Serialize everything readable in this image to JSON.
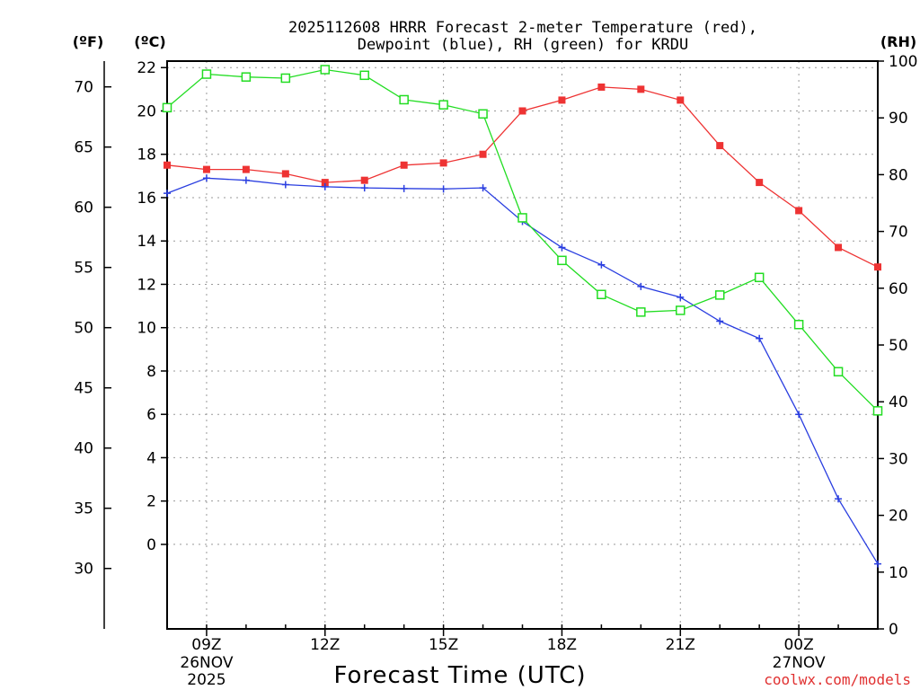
{
  "chart_data": {
    "type": "line",
    "title_line1": "2025112608 HRRR Forecast 2-meter Temperature (red),",
    "title_line2": "Dewpoint (blue), RH (green) for KRDU",
    "xlabel": "Forecast Time (UTC)",
    "watermark": "coolwx.com/models",
    "unit_labels": {
      "fahrenheit": "(ºF)",
      "celsius": "(ºC)",
      "rh": "(RH)"
    },
    "x_hours_utc": [
      8,
      9,
      10,
      11,
      12,
      13,
      14,
      15,
      16,
      17,
      18,
      19,
      20,
      21,
      22,
      23,
      24,
      25,
      26
    ],
    "xlim": [
      8,
      26
    ],
    "x_ticks": [
      {
        "hour": 9,
        "label": "09Z"
      },
      {
        "hour": 12,
        "label": "12Z"
      },
      {
        "hour": 15,
        "label": "15Z"
      },
      {
        "hour": 18,
        "label": "18Z"
      },
      {
        "hour": 21,
        "label": "21Z"
      },
      {
        "hour": 24,
        "label": "00Z"
      }
    ],
    "date_labels": [
      {
        "hour": 9,
        "line1": "26NOV",
        "line2": "2025"
      },
      {
        "hour": 24,
        "line1": "27NOV",
        "line2": ""
      }
    ],
    "celsius_axis": {
      "ylim": [
        -3.9,
        22.3
      ],
      "ticks": [
        0,
        2,
        4,
        6,
        8,
        10,
        12,
        14,
        16,
        18,
        20,
        22
      ]
    },
    "fahrenheit_axis": {
      "ticks": [
        30,
        35,
        40,
        45,
        50,
        55,
        60,
        65,
        70
      ]
    },
    "rh_axis": {
      "ylim": [
        0,
        100
      ],
      "ticks": [
        0,
        10,
        20,
        30,
        40,
        50,
        60,
        70,
        80,
        90,
        100
      ]
    },
    "series": [
      {
        "name": "Temperature",
        "axis": "celsius",
        "color": "#ee3333",
        "marker": "filled-square",
        "values": [
          17.5,
          17.3,
          17.3,
          17.1,
          16.7,
          16.8,
          17.5,
          17.6,
          18.0,
          20.0,
          20.5,
          21.1,
          21.0,
          20.5,
          18.4,
          16.7,
          15.4,
          13.7,
          12.8
        ]
      },
      {
        "name": "Dewpoint",
        "axis": "celsius",
        "color": "#2a3ee0",
        "marker": "plus",
        "values": [
          16.2,
          16.9,
          16.8,
          16.6,
          16.5,
          16.45,
          16.42,
          16.4,
          16.45,
          14.9,
          13.7,
          12.9,
          11.9,
          11.4,
          10.3,
          9.5,
          6.0,
          2.1,
          -0.9
        ]
      },
      {
        "name": "RH",
        "axis": "rh",
        "color": "#22dd22",
        "marker": "open-square",
        "values": [
          91.8,
          97.7,
          97.2,
          97.0,
          98.5,
          97.5,
          93.2,
          92.3,
          90.7,
          72.4,
          64.9,
          58.9,
          55.8,
          56.1,
          58.8,
          61.9,
          53.6,
          45.3,
          38.4
        ]
      }
    ]
  }
}
